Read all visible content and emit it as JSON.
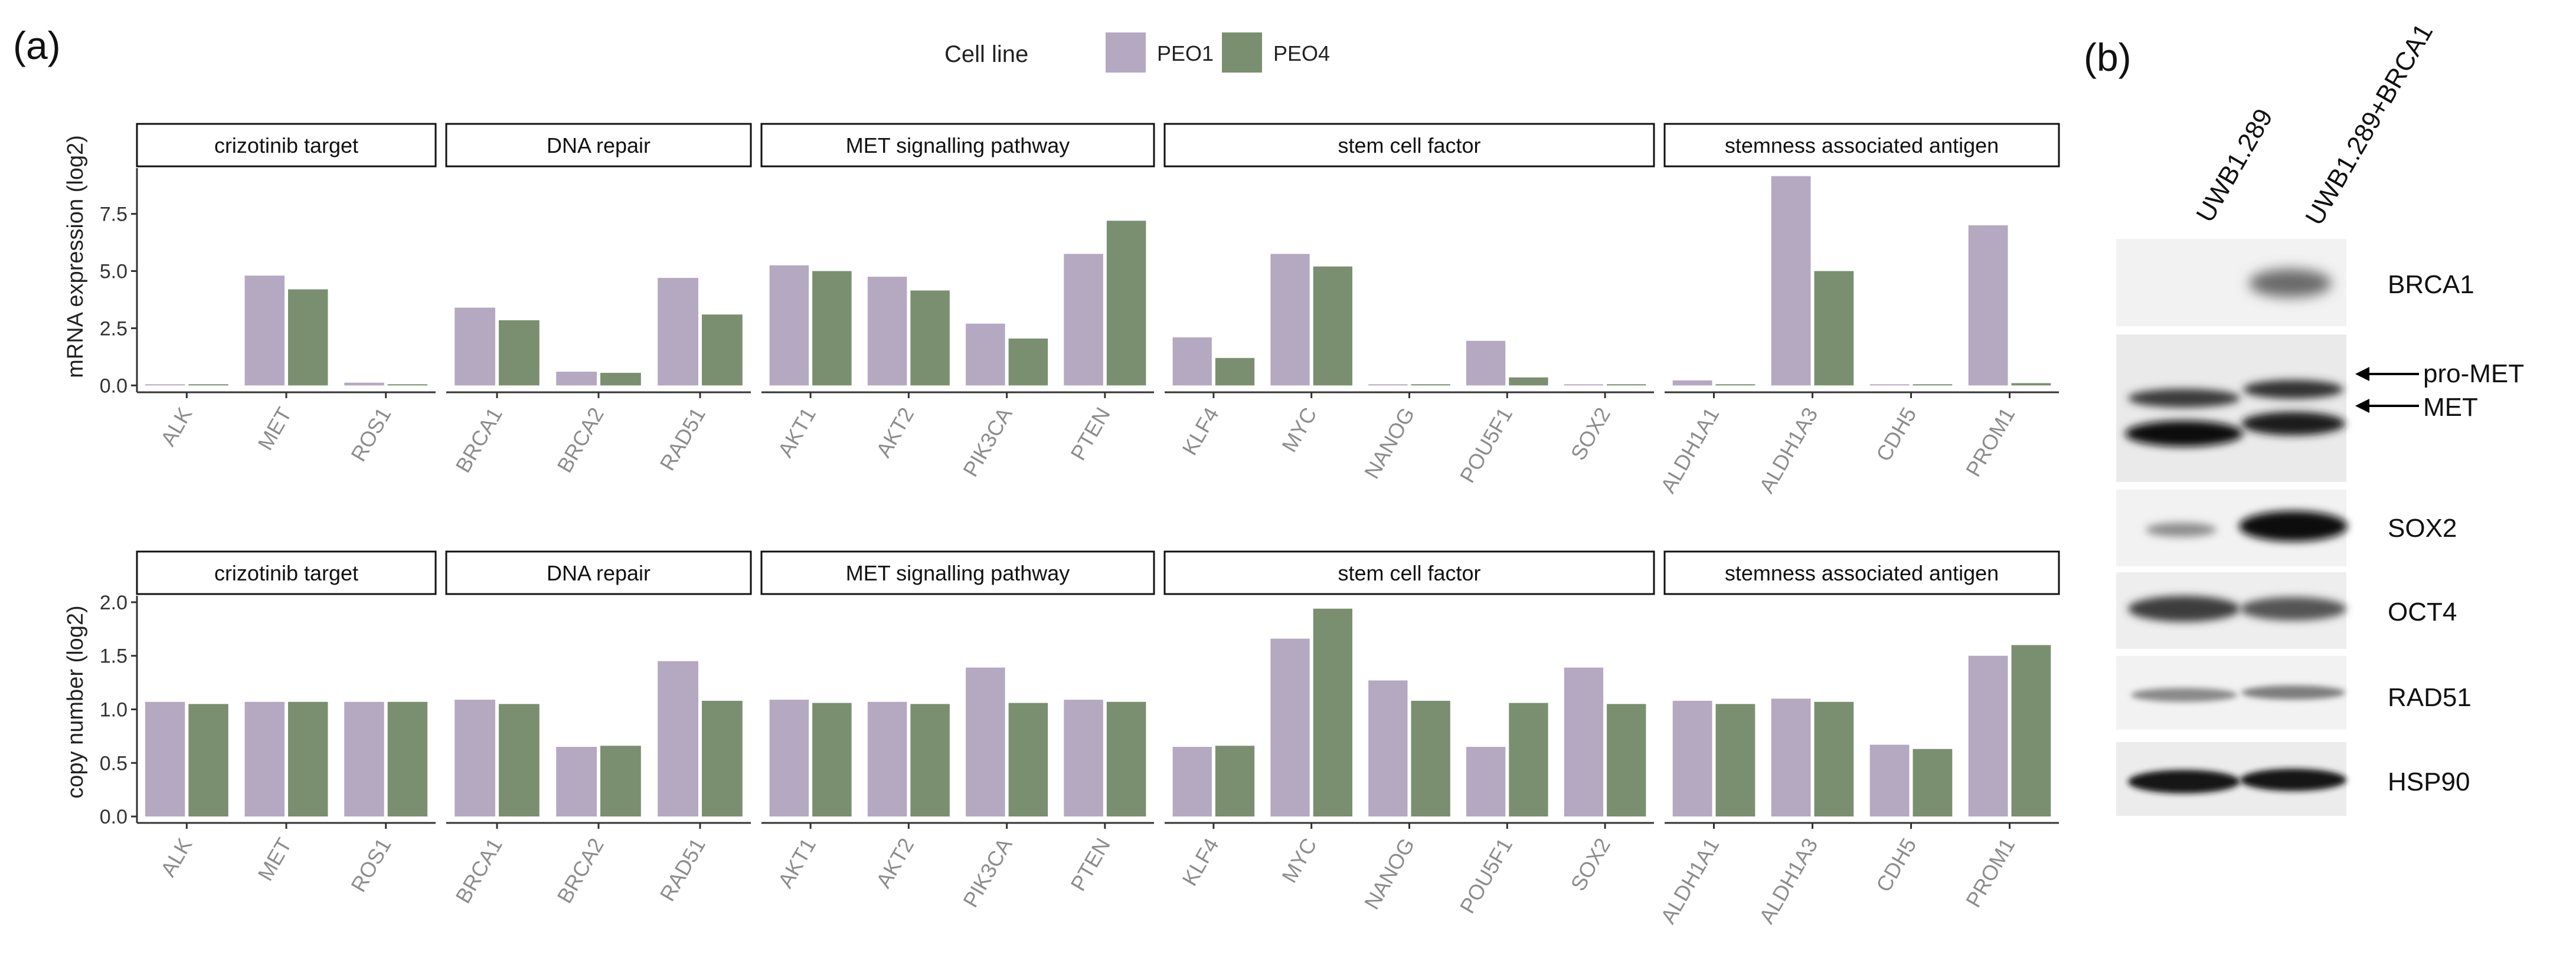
{
  "panel_labels": {
    "a": "(a)",
    "b": "(b)"
  },
  "legend": {
    "title": "Cell line",
    "entries": [
      {
        "name": "PEO1",
        "color": "#b5a8c1"
      },
      {
        "name": "PEO4",
        "color": "#7a8f6f"
      }
    ]
  },
  "colors": {
    "PEO1": "#b5a8c1",
    "PEO4": "#7a8f6f",
    "axis": "#333333",
    "tick_label": "#8c8c8c"
  },
  "chart_data": [
    {
      "type": "bar",
      "ylabel": "mRNA expression (log2)",
      "ylim": [
        -0.3,
        9.5
      ],
      "yticks": [
        0.0,
        2.5,
        5.0,
        7.5
      ],
      "ytick_labels": [
        "0.0",
        "2.5",
        "5.0",
        "7.5"
      ],
      "facets": [
        {
          "title": "crizotinib target",
          "categories": [
            "ALK",
            "MET",
            "ROS1"
          ],
          "series": [
            {
              "name": "PEO1",
              "values": [
                0.02,
                4.8,
                0.12
              ]
            },
            {
              "name": "PEO4",
              "values": [
                0.0,
                4.2,
                0.02
              ]
            }
          ]
        },
        {
          "title": "DNA repair",
          "categories": [
            "BRCA1",
            "BRCA2",
            "RAD51"
          ],
          "series": [
            {
              "name": "PEO1",
              "values": [
                3.4,
                0.6,
                4.7
              ]
            },
            {
              "name": "PEO4",
              "values": [
                2.85,
                0.55,
                3.1
              ]
            }
          ]
        },
        {
          "title": "MET signalling pathway",
          "categories": [
            "AKT1",
            "AKT2",
            "PIK3CA",
            "PTEN"
          ],
          "series": [
            {
              "name": "PEO1",
              "values": [
                5.25,
                4.75,
                2.7,
                5.75
              ]
            },
            {
              "name": "PEO4",
              "values": [
                5.0,
                4.15,
                2.05,
                7.2
              ]
            }
          ]
        },
        {
          "title": "stem cell factor",
          "categories": [
            "KLF4",
            "MYC",
            "NANOG",
            "POU5F1",
            "SOX2"
          ],
          "series": [
            {
              "name": "PEO1",
              "values": [
                2.1,
                5.75,
                0.03,
                1.95,
                0.0
              ]
            },
            {
              "name": "PEO4",
              "values": [
                1.2,
                5.2,
                0.03,
                0.35,
                0.0
              ]
            }
          ]
        },
        {
          "title": "stemness associated antigen",
          "categories": [
            "ALDH1A1",
            "ALDH1A3",
            "CDH5",
            "PROM1"
          ],
          "series": [
            {
              "name": "PEO1",
              "values": [
                0.22,
                9.15,
                0.0,
                7.0
              ]
            },
            {
              "name": "PEO4",
              "values": [
                0.05,
                5.0,
                0.0,
                0.1
              ]
            }
          ]
        }
      ]
    },
    {
      "type": "bar",
      "ylabel": "copy number (log2)",
      "ylim": [
        -0.06,
        2.06
      ],
      "yticks": [
        0.0,
        0.5,
        1.0,
        1.5,
        2.0
      ],
      "ytick_labels": [
        "0.0",
        "0.5",
        "1.0",
        "1.5",
        "2.0"
      ],
      "facets": [
        {
          "title": "crizotinib target",
          "categories": [
            "ALK",
            "MET",
            "ROS1"
          ],
          "series": [
            {
              "name": "PEO1",
              "values": [
                1.07,
                1.07,
                1.07
              ]
            },
            {
              "name": "PEO4",
              "values": [
                1.05,
                1.07,
                1.07
              ]
            }
          ]
        },
        {
          "title": "DNA repair",
          "categories": [
            "BRCA1",
            "BRCA2",
            "RAD51"
          ],
          "series": [
            {
              "name": "PEO1",
              "values": [
                1.09,
                0.65,
                1.45
              ]
            },
            {
              "name": "PEO4",
              "values": [
                1.05,
                0.66,
                1.08
              ]
            }
          ]
        },
        {
          "title": "MET signalling pathway",
          "categories": [
            "AKT1",
            "AKT2",
            "PIK3CA",
            "PTEN"
          ],
          "series": [
            {
              "name": "PEO1",
              "values": [
                1.09,
                1.07,
                1.39,
                1.09
              ]
            },
            {
              "name": "PEO4",
              "values": [
                1.06,
                1.05,
                1.06,
                1.07
              ]
            }
          ]
        },
        {
          "title": "stem cell factor",
          "categories": [
            "KLF4",
            "MYC",
            "NANOG",
            "POU5F1",
            "SOX2"
          ],
          "series": [
            {
              "name": "PEO1",
              "values": [
                0.65,
                1.66,
                1.27,
                0.65,
                1.39
              ]
            },
            {
              "name": "PEO4",
              "values": [
                0.66,
                1.94,
                1.08,
                1.06,
                1.05
              ]
            }
          ]
        },
        {
          "title": "stemness associated antigen",
          "categories": [
            "ALDH1A1",
            "ALDH1A3",
            "CDH5",
            "PROM1"
          ],
          "series": [
            {
              "name": "PEO1",
              "values": [
                1.08,
                1.1,
                0.67,
                1.5
              ]
            },
            {
              "name": "PEO4",
              "values": [
                1.05,
                1.07,
                0.63,
                1.6
              ]
            }
          ]
        }
      ]
    }
  ],
  "western_blot": {
    "lanes": [
      "UWB1.289",
      "UWB1.289+BRCA1"
    ],
    "rows": [
      {
        "label": "BRCA1"
      },
      {
        "label": "MET",
        "arrow_labels": [
          "pro-MET",
          "MET"
        ]
      },
      {
        "label": "SOX2"
      },
      {
        "label": "OCT4"
      },
      {
        "label": "RAD51"
      },
      {
        "label": "HSP90"
      }
    ]
  }
}
